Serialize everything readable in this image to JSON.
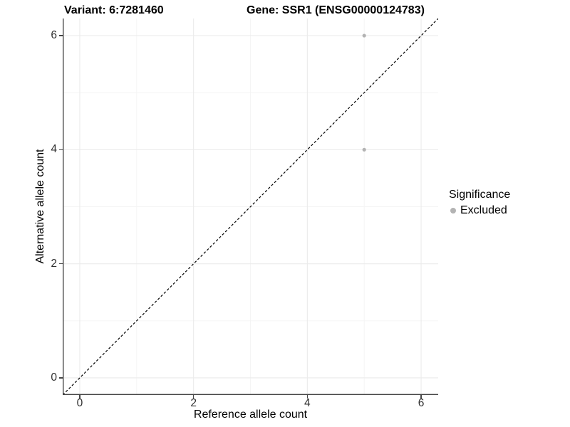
{
  "chart_data": {
    "type": "scatter",
    "titles": {
      "left": "Variant: 6:7281460",
      "right": "Gene: SSR1 (ENSG00000124783)"
    },
    "xlabel": "Reference allele count",
    "ylabel": "Alternative allele count",
    "xlim": [
      -0.3,
      6.3
    ],
    "ylim": [
      -0.3,
      6.3
    ],
    "x_ticks": [
      0,
      2,
      4,
      6
    ],
    "y_ticks": [
      0,
      2,
      4,
      6
    ],
    "x_minor_ticks": [
      1,
      3,
      5
    ],
    "y_minor_ticks": [
      1,
      3,
      5
    ],
    "grid": true,
    "identity_line": {
      "style": "dashed",
      "from": -0.3,
      "to": 6.3,
      "color": "#000000"
    },
    "series": [
      {
        "name": "Excluded",
        "color": "#b3b3b3",
        "points": [
          {
            "x": 5,
            "y": 6
          },
          {
            "x": 5,
            "y": 4
          }
        ]
      }
    ],
    "legend": {
      "title": "Significance",
      "position": "right",
      "entries": [
        {
          "label": "Excluded",
          "color": "#b3b3b3"
        }
      ]
    }
  },
  "colors": {
    "background": "#ffffff",
    "grid_major": "#ebebeb",
    "grid_minor": "#f4f4f4",
    "axis_line": "#464646",
    "tick_text": "#303030",
    "title_text": "#000000"
  }
}
